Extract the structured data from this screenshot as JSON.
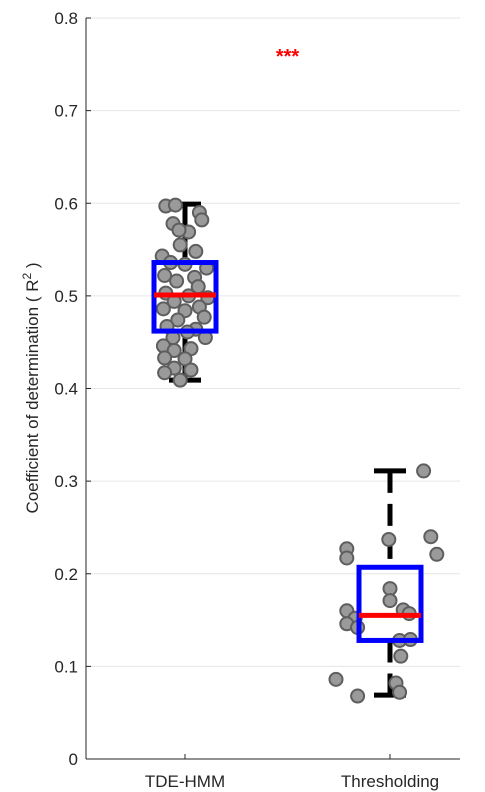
{
  "chart_data": {
    "type": "boxplot",
    "ylabel": "Coefficient of determination ( R",
    "ylabel_superscript": "2",
    "ylabel_suffix": " )",
    "ylim": [
      0,
      0.8
    ],
    "yticks": [
      "0",
      "0.1",
      "0.2",
      "0.3",
      "0.4",
      "0.5",
      "0.6",
      "0.7",
      "0.8"
    ],
    "ytick_values": [
      0,
      0.1,
      0.2,
      0.3,
      0.4,
      0.5,
      0.6,
      0.7,
      0.8
    ],
    "grid": "horizontal",
    "categories": [
      "TDE-HMM",
      "Thresholding"
    ],
    "significance": "***",
    "significance_value": 0.762,
    "colors": {
      "box": "#0000ff",
      "median": "#ff0000",
      "whisker": "#000000",
      "point_fill": "#9a9a9a",
      "point_edge": "#5e5e5e",
      "grid": "#e6e6e6",
      "significance": "#ff0000"
    },
    "boxes": [
      {
        "category": "TDE-HMM",
        "q1": 0.462,
        "median": 0.501,
        "q3": 0.536,
        "whisker_low": 0.409,
        "whisker_high": 0.599,
        "points": [
          {
            "x": -0.16,
            "y": 0.597
          },
          {
            "x": -0.08,
            "y": 0.598
          },
          {
            "x": 0.12,
            "y": 0.59
          },
          {
            "x": -0.1,
            "y": 0.578
          },
          {
            "x": 0.14,
            "y": 0.582
          },
          {
            "x": 0.03,
            "y": 0.569
          },
          {
            "x": -0.05,
            "y": 0.571
          },
          {
            "x": 0.09,
            "y": 0.548
          },
          {
            "x": -0.04,
            "y": 0.555
          },
          {
            "x": -0.19,
            "y": 0.543
          },
          {
            "x": -0.12,
            "y": 0.536
          },
          {
            "x": 0.18,
            "y": 0.53
          },
          {
            "x": 0.0,
            "y": 0.534
          },
          {
            "x": -0.17,
            "y": 0.522
          },
          {
            "x": 0.08,
            "y": 0.52
          },
          {
            "x": -0.07,
            "y": 0.516
          },
          {
            "x": 0.11,
            "y": 0.51
          },
          {
            "x": -0.16,
            "y": 0.503
          },
          {
            "x": 0.19,
            "y": 0.498
          },
          {
            "x": 0.03,
            "y": 0.5
          },
          {
            "x": -0.09,
            "y": 0.494
          },
          {
            "x": 0.12,
            "y": 0.488
          },
          {
            "x": -0.18,
            "y": 0.486
          },
          {
            "x": 0.0,
            "y": 0.484
          },
          {
            "x": 0.16,
            "y": 0.477
          },
          {
            "x": -0.06,
            "y": 0.474
          },
          {
            "x": -0.15,
            "y": 0.467
          },
          {
            "x": 0.09,
            "y": 0.464
          },
          {
            "x": 0.02,
            "y": 0.461
          },
          {
            "x": -0.1,
            "y": 0.455
          },
          {
            "x": 0.17,
            "y": 0.455
          },
          {
            "x": 0.05,
            "y": 0.443
          },
          {
            "x": -0.18,
            "y": 0.446
          },
          {
            "x": -0.09,
            "y": 0.441
          },
          {
            "x": 0.0,
            "y": 0.432
          },
          {
            "x": -0.17,
            "y": 0.433
          },
          {
            "x": -0.09,
            "y": 0.422
          },
          {
            "x": 0.05,
            "y": 0.42
          },
          {
            "x": -0.17,
            "y": 0.417
          },
          {
            "x": -0.04,
            "y": 0.409
          }
        ]
      },
      {
        "category": "Thresholding",
        "q1": 0.128,
        "median": 0.155,
        "q3": 0.207,
        "whisker_low": 0.069,
        "whisker_high": 0.311,
        "points": [
          {
            "x": 0.28,
            "y": 0.311
          },
          {
            "x": -0.01,
            "y": 0.237
          },
          {
            "x": 0.34,
            "y": 0.24
          },
          {
            "x": -0.36,
            "y": 0.227
          },
          {
            "x": 0.39,
            "y": 0.221
          },
          {
            "x": -0.36,
            "y": 0.217
          },
          {
            "x": 0.0,
            "y": 0.184
          },
          {
            "x": 0.0,
            "y": 0.171
          },
          {
            "x": -0.36,
            "y": 0.16
          },
          {
            "x": 0.11,
            "y": 0.161
          },
          {
            "x": 0.16,
            "y": 0.157
          },
          {
            "x": -0.29,
            "y": 0.152
          },
          {
            "x": -0.36,
            "y": 0.146
          },
          {
            "x": -0.27,
            "y": 0.142
          },
          {
            "x": 0.08,
            "y": 0.128
          },
          {
            "x": 0.17,
            "y": 0.129
          },
          {
            "x": 0.09,
            "y": 0.111
          },
          {
            "x": -0.45,
            "y": 0.086
          },
          {
            "x": 0.05,
            "y": 0.082
          },
          {
            "x": 0.08,
            "y": 0.072
          },
          {
            "x": -0.27,
            "y": 0.068
          }
        ]
      }
    ]
  }
}
